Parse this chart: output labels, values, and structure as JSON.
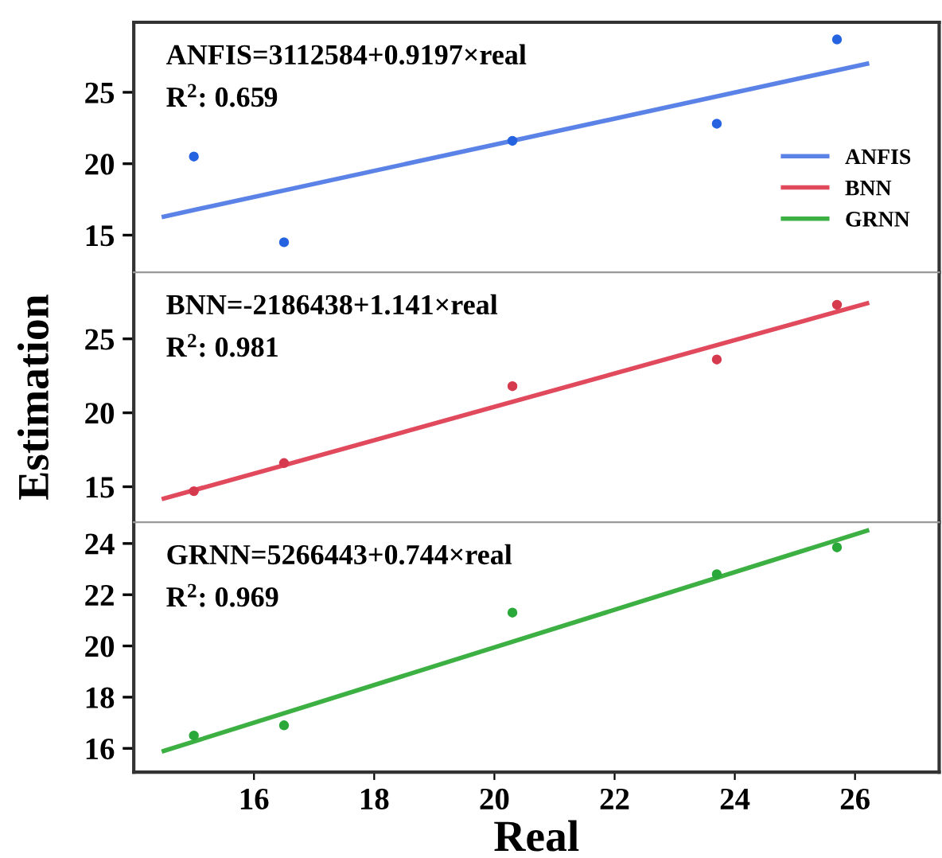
{
  "chart_data": [
    {
      "type": "scatter",
      "annotations": [
        "ANFIS=3112584+0.9197×real",
        "R$^{2}$: 0.659"
      ],
      "xlim": [
        14,
        27.4
      ],
      "xticks": [
        16,
        18,
        20,
        22,
        24,
        26
      ],
      "ylim": [
        12.4,
        29.9
      ],
      "yticks": [
        15,
        20,
        25
      ],
      "tick_labels": "y",
      "legend": "right",
      "series": [
        {
          "color": "#2563e0",
          "x": [
            15.0,
            16.5,
            20.3,
            23.7,
            25.7
          ],
          "values": [
            20.5,
            14.5,
            21.6,
            22.8,
            28.7
          ]
        },
        {
          "type": "line",
          "name": "ANFIS",
          "color": "#5b82e6",
          "x": [
            14.5,
            26.2
          ],
          "values": [
            16.3,
            27.0
          ]
        }
      ]
    },
    {
      "type": "scatter",
      "annotations": [
        "BNN=-2186438+1.141×real",
        "R$^{2}$: 0.981"
      ],
      "ylabel": "Estimation",
      "xlim": [
        14,
        27.4
      ],
      "xticks": [
        16,
        18,
        20,
        22,
        24,
        26
      ],
      "ylim": [
        12.6,
        29.5
      ],
      "yticks": [
        15,
        20,
        25
      ],
      "tick_labels": "y",
      "series": [
        {
          "color": "#d63a4e",
          "x": [
            15.0,
            16.5,
            20.3,
            23.7,
            25.7
          ],
          "values": [
            14.7,
            16.6,
            21.8,
            23.6,
            27.3
          ]
        },
        {
          "type": "line",
          "name": "BNN",
          "color": "#e04a5c",
          "x": [
            14.5,
            26.2
          ],
          "values": [
            14.2,
            27.4
          ]
        }
      ]
    },
    {
      "type": "scatter",
      "annotations": [
        "GRNN=5266443+0.744×real",
        "R$^{2}$: 0.969"
      ],
      "xlabel": "Real",
      "xlim": [
        14,
        27.4
      ],
      "xticks": [
        16,
        18,
        20,
        22,
        24,
        26
      ],
      "ylim": [
        15.07,
        24.83
      ],
      "yticks": [
        16,
        18,
        20,
        22,
        24
      ],
      "series": [
        {
          "color": "#2aa83a",
          "x": [
            15.0,
            16.5,
            20.3,
            23.7,
            25.7
          ],
          "values": [
            16.5,
            16.9,
            21.3,
            22.8,
            23.85
          ]
        },
        {
          "type": "line",
          "name": "GRNN",
          "color": "#3cb043",
          "x": [
            14.5,
            26.2
          ],
          "values": [
            15.9,
            24.5
          ]
        }
      ]
    }
  ]
}
